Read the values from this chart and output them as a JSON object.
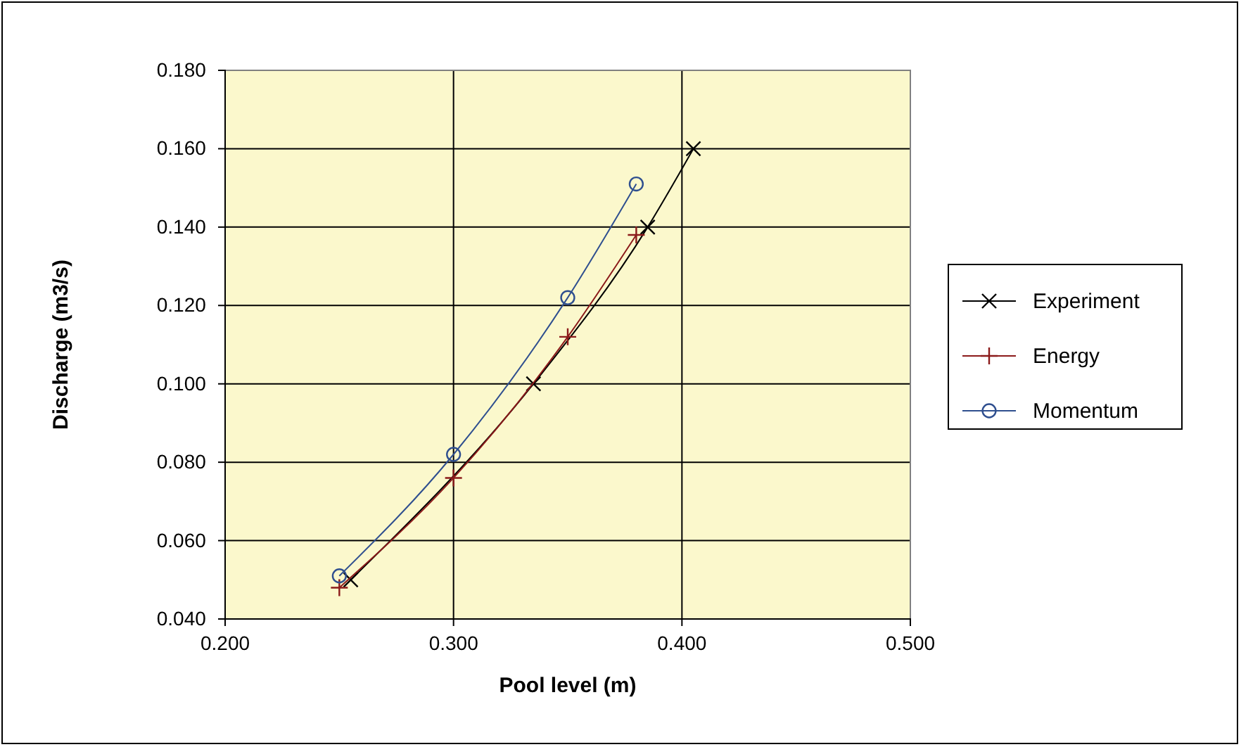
{
  "chart_data": {
    "type": "line",
    "xlabel": "Pool level (m)",
    "ylabel": "Discharge (m3/s)",
    "xlim": [
      0.2,
      0.5
    ],
    "xticks": [
      {
        "value": 0.2,
        "label": "0.200"
      },
      {
        "value": 0.3,
        "label": "0.300"
      },
      {
        "value": 0.4,
        "label": "0.400"
      },
      {
        "value": 0.5,
        "label": "0.500"
      }
    ],
    "ylim": [
      0.04,
      0.18
    ],
    "yticks": [
      {
        "value": 0.04,
        "label": "0.040"
      },
      {
        "value": 0.06,
        "label": "0.060"
      },
      {
        "value": 0.08,
        "label": "0.080"
      },
      {
        "value": 0.1,
        "label": "0.100"
      },
      {
        "value": 0.12,
        "label": "0.120"
      },
      {
        "value": 0.14,
        "label": "0.140"
      },
      {
        "value": 0.16,
        "label": "0.160"
      },
      {
        "value": 0.18,
        "label": "0.180"
      }
    ],
    "grid": true,
    "legend": "right",
    "series": [
      {
        "name": "Experiment",
        "color": "#000000",
        "marker": "cross",
        "x": [
          0.255,
          0.335,
          0.385,
          0.405
        ],
        "values": [
          0.05,
          0.1,
          0.14,
          0.16
        ]
      },
      {
        "name": "Energy",
        "color": "#8b1a1a",
        "marker": "plus",
        "x": [
          0.25,
          0.3,
          0.35,
          0.38
        ],
        "values": [
          0.048,
          0.076,
          0.112,
          0.138
        ]
      },
      {
        "name": "Momentum",
        "color": "#2f4f8f",
        "marker": "circle",
        "x": [
          0.25,
          0.3,
          0.35,
          0.38
        ],
        "values": [
          0.051,
          0.082,
          0.122,
          0.151
        ]
      }
    ]
  }
}
